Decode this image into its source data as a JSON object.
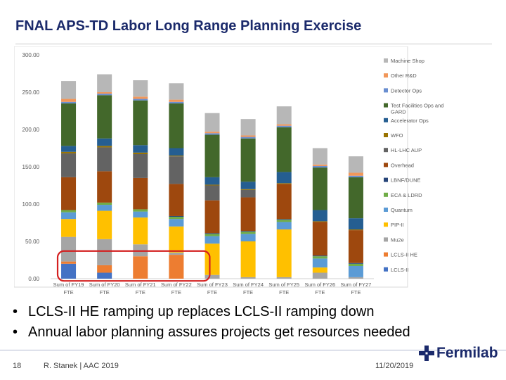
{
  "slide": {
    "title": "FNAL APS-TD Labor Long Range Planning Exercise",
    "bullets": [
      "LCLS-II HE ramping up replaces LCLS-II ramping down",
      "Annual labor planning assures projects get resources needed"
    ],
    "footer": {
      "slide_number": "18",
      "author": "R. Stanek | AAC 2019",
      "date": "11/20/2019",
      "logo_text": "Fermilab"
    }
  },
  "colors": {
    "highlight_box": "#d42020",
    "title": "#1b2a6b",
    "logo": "#1b2a6b"
  },
  "chart_data": {
    "type": "bar",
    "stacked": true,
    "ylim": [
      0,
      300
    ],
    "yticks": [
      0,
      50,
      100,
      150,
      200,
      250,
      300
    ],
    "ytick_labels": [
      "0.00",
      "50.00",
      "100.00",
      "150.00",
      "200.00",
      "250.00",
      "300.00"
    ],
    "grid": false,
    "legend_position": "right",
    "categories": [
      [
        "Sum of FY19",
        "FTE"
      ],
      [
        "Sum of FY20",
        "FTE"
      ],
      [
        "Sum of FY21",
        "FTE"
      ],
      [
        "Sum of FY22",
        "FTE"
      ],
      [
        "Sum of FY23",
        "FTE"
      ],
      [
        "Sum of FY24",
        "FTE"
      ],
      [
        "Sum of FY25",
        "FTE"
      ],
      [
        "Sum of FY26",
        "FTE"
      ],
      [
        "Sum of FY27",
        "FTE"
      ]
    ],
    "series": [
      {
        "name": "LCLS-II",
        "color": "#4472c4",
        "values": [
          20,
          8,
          0,
          0,
          0,
          0,
          0,
          0,
          0
        ]
      },
      {
        "name": "LCLS-II HE",
        "color": "#ed7d31",
        "values": [
          3,
          10,
          30,
          32,
          0,
          0,
          0,
          0,
          0
        ]
      },
      {
        "name": "Mu2e",
        "color": "#a5a5a5",
        "values": [
          33,
          35,
          16,
          3,
          5,
          2,
          2,
          8,
          2
        ]
      },
      {
        "name": "PIP-II",
        "color": "#ffc000",
        "values": [
          24,
          38,
          36,
          35,
          42,
          48,
          64,
          7,
          0
        ]
      },
      {
        "name": "Quantum",
        "color": "#5b9bd5",
        "values": [
          9,
          8,
          8,
          10,
          10,
          10,
          10,
          12,
          15
        ]
      },
      {
        "name": "ECA & LDRD",
        "color": "#70ad47",
        "values": [
          3,
          3,
          3,
          3,
          3,
          3,
          3,
          3,
          3
        ]
      },
      {
        "name": "LBNF/DUNE",
        "color": "#264478",
        "values": [
          0,
          0,
          0,
          1,
          1,
          1,
          1,
          1,
          1
        ]
      },
      {
        "name": "Overhead",
        "color": "#9e480e",
        "values": [
          44,
          42,
          42,
          43,
          44,
          45,
          47,
          45,
          44
        ]
      },
      {
        "name": "HL-LHC AUP",
        "color": "#636363",
        "values": [
          32,
          32,
          32,
          37,
          20,
          10,
          0,
          0,
          0
        ]
      },
      {
        "name": "WFO",
        "color": "#997300",
        "values": [
          2,
          2,
          2,
          1,
          1,
          1,
          1,
          1,
          1
        ]
      },
      {
        "name": "Accelerator Ops",
        "color": "#255e91",
        "values": [
          8,
          10,
          10,
          10,
          10,
          10,
          15,
          15,
          15
        ]
      },
      {
        "name": "Test Facilities Ops and GARD",
        "color": "#43682b",
        "values": [
          57,
          58,
          60,
          60,
          57,
          58,
          60,
          57,
          55
        ]
      },
      {
        "name": "Detector Ops",
        "color": "#698ed0",
        "values": [
          2,
          2,
          2,
          2,
          2,
          2,
          2,
          2,
          2
        ]
      },
      {
        "name": "Other R&D",
        "color": "#f1975a",
        "values": [
          4,
          2,
          3,
          3,
          2,
          2,
          2,
          2,
          4
        ]
      },
      {
        "name": "Machine Shop",
        "color": "#b7b7b7",
        "values": [
          24,
          24,
          22,
          22,
          25,
          22,
          24,
          22,
          22
        ]
      }
    ]
  }
}
